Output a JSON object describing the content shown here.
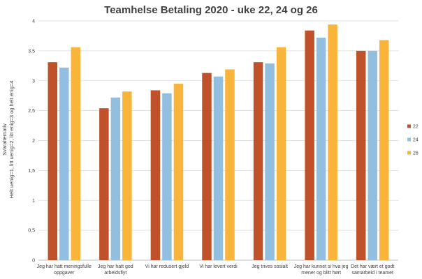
{
  "chart_data": {
    "type": "bar",
    "title": "Teamhelse Betaling 2020 - uke 22, 24 og 26",
    "ylabel_lines": [
      "Svaralternativ",
      "Helt uenig=1, litt uenig=2, litt enig=3 og helt enig=4"
    ],
    "ylim": [
      0,
      4
    ],
    "yticks": [
      "0",
      "0,5",
      "1",
      "1,5",
      "2",
      "2,5",
      "3",
      "3,5",
      "4"
    ],
    "categories": [
      [
        "Jeg har hatt meningsfulle",
        "oppgaver"
      ],
      [
        "Jeg har hatt god",
        "arbeidsflyt"
      ],
      [
        "Vi har redusert gjeld"
      ],
      [
        "Vi har levert verdi"
      ],
      [
        "Jeg trives sosialt"
      ],
      [
        "Jeg har kunnet si hva jeg",
        "mener og blitt hørt"
      ],
      [
        "Det har vært et godt",
        "samarbeid i teamet"
      ]
    ],
    "series": [
      {
        "name": "22",
        "color": "#c0522b",
        "values": [
          3.31,
          2.54,
          2.84,
          3.13,
          3.31,
          3.84,
          3.5
        ]
      },
      {
        "name": "24",
        "color": "#92bfe0",
        "values": [
          3.22,
          2.72,
          2.79,
          3.07,
          3.29,
          3.72,
          3.5
        ]
      },
      {
        "name": "26",
        "color": "#f9b43c",
        "values": [
          3.56,
          2.82,
          2.95,
          3.19,
          3.56,
          3.94,
          3.68
        ]
      }
    ],
    "grid": true,
    "legend": "right"
  }
}
